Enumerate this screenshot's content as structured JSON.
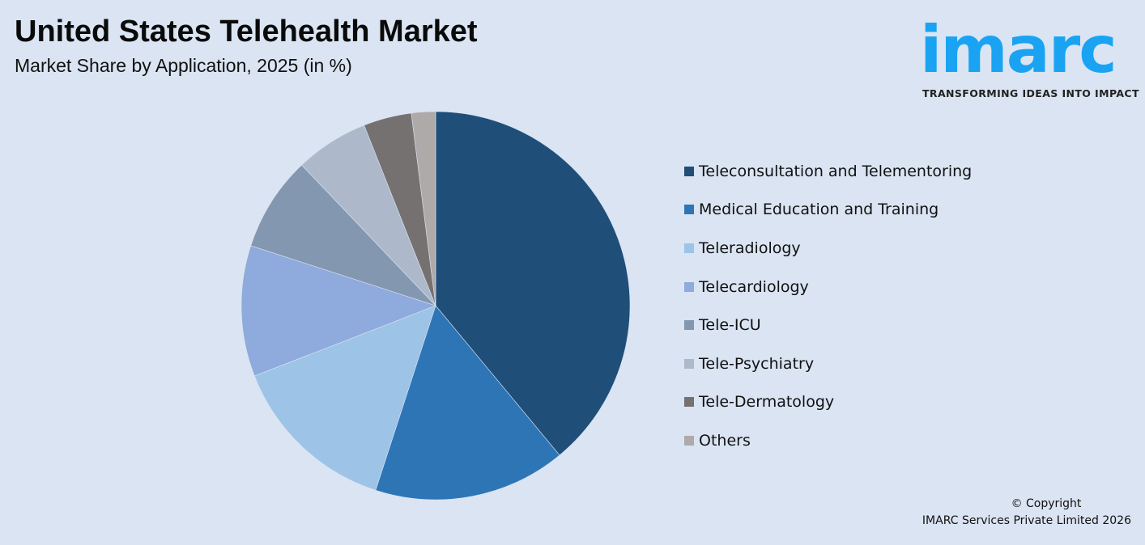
{
  "header": {
    "title": "United States Telehealth Market",
    "subtitle": "Market Share by Application, 2025 (in %)"
  },
  "logo": {
    "wordmark": "imarc",
    "tagline": "TRANSFORMING IDEAS INTO IMPACT",
    "color": "#1aa3f2"
  },
  "footer": {
    "copyright_line1": "© Copyright",
    "copyright_line2": "IMARC Services Private Limited 2026"
  },
  "legend": {
    "items": [
      {
        "label": "Teleconsultation and Telementoring",
        "color": "#1f4e79"
      },
      {
        "label": "Medical Education and Training",
        "color": "#2e75b6"
      },
      {
        "label": "Teleradiology",
        "color": "#9dc3e6"
      },
      {
        "label": "Telecardiology",
        "color": "#8faadc"
      },
      {
        "label": "Tele-ICU",
        "color": "#8497b0"
      },
      {
        "label": "Tele-Psychiatry",
        "color": "#adb9ca"
      },
      {
        "label": "Tele-Dermatology",
        "color": "#767171"
      },
      {
        "label": "Others",
        "color": "#aeaaaa"
      }
    ]
  },
  "chart_data": {
    "type": "pie",
    "title": "United States Telehealth Market",
    "subtitle": "Market Share by Application, 2025 (in %)",
    "categories": [
      "Teleconsultation and Telementoring",
      "Medical Education and Training",
      "Teleradiology",
      "Telecardiology",
      "Tele-ICU",
      "Tele-Psychiatry",
      "Tele-Dermatology",
      "Others"
    ],
    "values": [
      39.0,
      16.0,
      14.1,
      10.9,
      7.9,
      6.1,
      4.0,
      2.0
    ],
    "colors": [
      "#1f4e79",
      "#2e75b6",
      "#9dc3e6",
      "#8faadc",
      "#8497b0",
      "#adb9ca",
      "#767171",
      "#aeaaaa"
    ],
    "start_angle": "12 o'clock",
    "direction": "clockwise",
    "data_labels": false,
    "legend_position": "right",
    "unit": "%"
  }
}
